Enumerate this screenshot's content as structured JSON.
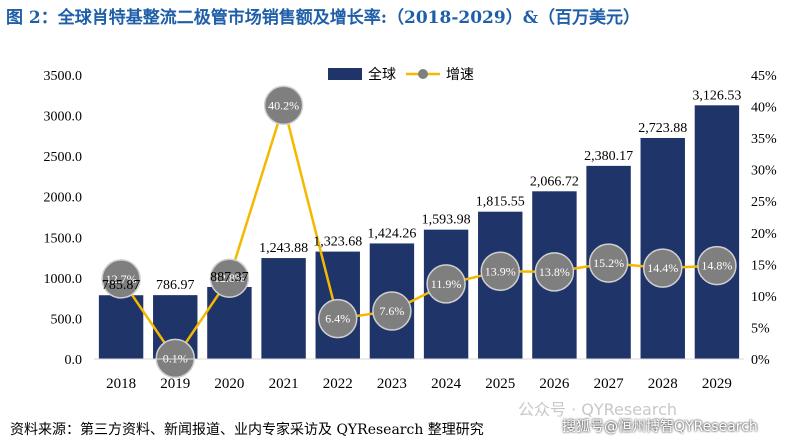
{
  "title": "图 2：全球肖特基整流二极管市场销售额及增长率:（2018-2029）&（百万美元）",
  "source": "资料来源：第三方资料、新闻报道、业内专家采访及 QYResearch 整理研究",
  "watermark": "公众号 · QYResearch",
  "watermark2": "搜狐号@恒州博智QYResearch",
  "colors": {
    "bar": "#1f3468",
    "line": "#f5b800",
    "marker": "#7f7f7f",
    "title": "#1f5fa8"
  },
  "chart_data": {
    "type": "bar",
    "categories": [
      "2018",
      "2019",
      "2020",
      "2021",
      "2022",
      "2023",
      "2024",
      "2025",
      "2026",
      "2027",
      "2028",
      "2029"
    ],
    "series": [
      {
        "name": "全球",
        "type": "bar",
        "axis": "left",
        "values": [
          785.87,
          786.97,
          887.37,
          1243.88,
          1323.68,
          1424.26,
          1593.98,
          1815.55,
          2066.72,
          2380.17,
          2723.88,
          3126.53
        ],
        "labels": [
          "785.87",
          "786.97",
          "887.37",
          "1,243.88",
          "1,323.68",
          "1,424.26",
          "1,593.98",
          "1,815.55",
          "2,066.72",
          "2,380.17",
          "2,723.88",
          "3,126.53"
        ]
      },
      {
        "name": "增速",
        "type": "line",
        "axis": "right",
        "values": [
          12.7,
          0.1,
          12.8,
          40.2,
          6.4,
          7.6,
          11.9,
          13.9,
          13.8,
          15.2,
          14.4,
          14.8
        ],
        "labels": [
          "12.7%",
          "0.1%",
          "12.8%",
          "40.2%",
          "6.4%",
          "7.6%",
          "11.9%",
          "13.9%",
          "13.8%",
          "15.2%",
          "14.4%",
          "14.8%"
        ]
      }
    ],
    "y_left": {
      "min": 0,
      "max": 3500,
      "ticks": [
        "0.0",
        "500.0",
        "1000.0",
        "1500.0",
        "2000.0",
        "2500.0",
        "3000.0",
        "3500.0"
      ]
    },
    "y_right": {
      "min": 0,
      "max": 45,
      "ticks": [
        "0%",
        "5%",
        "10%",
        "15%",
        "20%",
        "25%",
        "30%",
        "35%",
        "40%",
        "45%"
      ]
    },
    "legend": {
      "position": "top-center",
      "items": [
        "全球",
        "增速"
      ]
    },
    "grid": false
  }
}
